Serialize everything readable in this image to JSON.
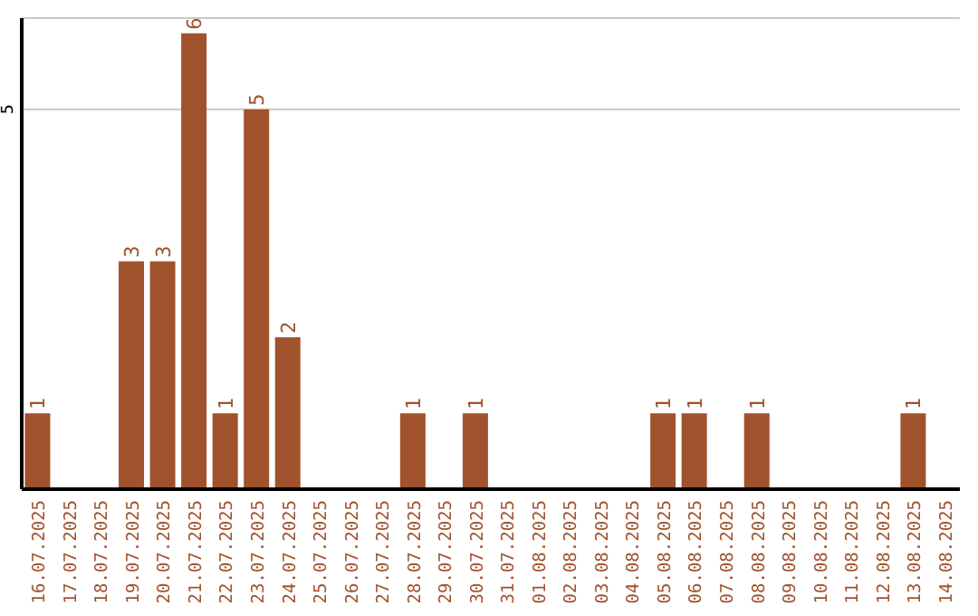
{
  "chart_data": {
    "type": "bar",
    "categories": [
      "16.07.2025",
      "17.07.2025",
      "18.07.2025",
      "19.07.2025",
      "20.07.2025",
      "21.07.2025",
      "22.07.2025",
      "23.07.2025",
      "24.07.2025",
      "25.07.2025",
      "26.07.2025",
      "27.07.2025",
      "28.07.2025",
      "29.07.2025",
      "30.07.2025",
      "31.07.2025",
      "01.08.2025",
      "02.08.2025",
      "03.08.2025",
      "04.08.2025",
      "05.08.2025",
      "06.08.2025",
      "07.08.2025",
      "08.08.2025",
      "09.08.2025",
      "10.08.2025",
      "11.08.2025",
      "12.08.2025",
      "13.08.2025",
      "14.08.2025"
    ],
    "values": [
      1,
      0,
      0,
      3,
      3,
      6,
      1,
      5,
      2,
      0,
      0,
      0,
      1,
      0,
      1,
      0,
      0,
      0,
      0,
      0,
      1,
      1,
      0,
      1,
      0,
      0,
      0,
      0,
      1,
      0
    ],
    "value_labels": [
      "1",
      null,
      null,
      "3",
      "3",
      "6",
      "1",
      "5",
      "2",
      null,
      null,
      null,
      "1",
      null,
      "1",
      null,
      null,
      null,
      null,
      null,
      "1",
      "1",
      null,
      "1",
      null,
      null,
      null,
      null,
      "1",
      null
    ],
    "color": "#a0522d",
    "ylim": [
      0,
      6.2
    ],
    "yticks": [
      5
    ],
    "grid": "y",
    "legend": false
  }
}
